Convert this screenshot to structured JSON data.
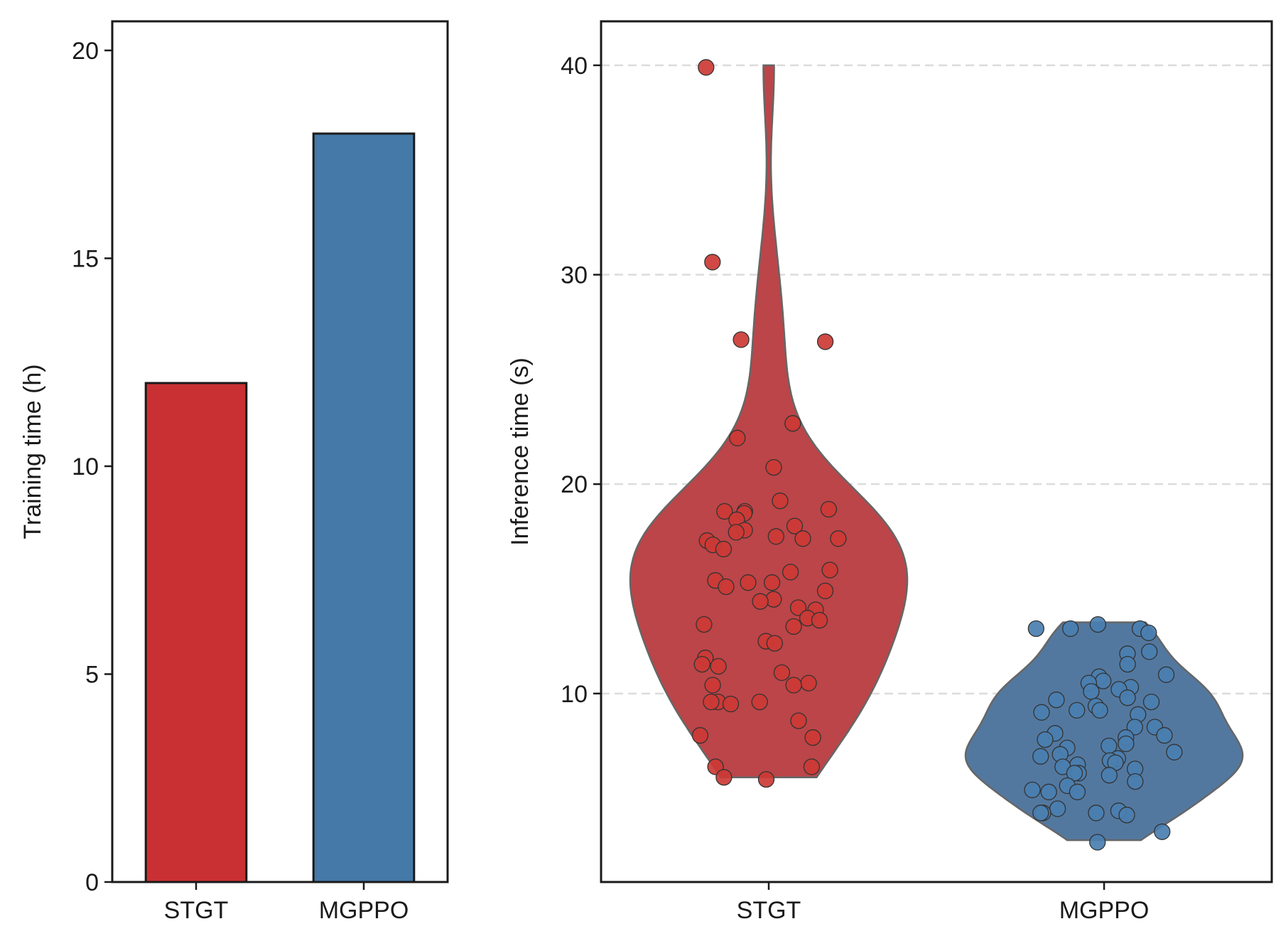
{
  "chart_data": [
    {
      "type": "bar",
      "ylabel": "Training time (h)",
      "categories": [
        "STGT",
        "MGPPO"
      ],
      "values": [
        12,
        18
      ],
      "colors": [
        "#c93033",
        "#4479a8"
      ],
      "ylim": [
        0,
        20.7
      ],
      "yticks": [
        0,
        5,
        10,
        15,
        20
      ],
      "ytick_labels": [
        "0",
        "5",
        "10",
        "15",
        "20"
      ],
      "grid": false
    },
    {
      "type": "scatter",
      "subtype": "violin-with-jittered-points",
      "ylabel": "Inference time (s)",
      "categories": [
        "STGT",
        "MGPPO"
      ],
      "ylim": [
        1,
        42.1
      ],
      "yticks": [
        10,
        20,
        30,
        40
      ],
      "ytick_labels": [
        "10",
        "20",
        "30",
        "40"
      ],
      "grid": "horizontal dashed",
      "series": [
        {
          "category": "STGT",
          "color": "#bb4548",
          "point_color": "#cc3a35",
          "violin_range": [
            6,
            40
          ],
          "values": [
            39.9,
            30.6,
            26.9,
            26.8,
            22.9,
            22.2,
            20.8,
            19.2,
            18.8,
            18.7,
            18.7,
            18.6,
            18.3,
            18.0,
            17.8,
            17.7,
            17.5,
            17.4,
            17.4,
            17.3,
            17.1,
            16.9,
            15.9,
            15.8,
            15.4,
            15.3,
            15.3,
            15.1,
            14.9,
            14.5,
            14.4,
            14.1,
            14.0,
            13.6,
            13.5,
            13.3,
            13.2,
            12.5,
            12.4,
            11.7,
            11.4,
            11.3,
            11.0,
            10.5,
            10.4,
            10.4,
            9.6,
            9.6,
            9.6,
            9.5,
            8.7,
            8.0,
            7.9,
            6.5,
            6.5,
            6.0,
            5.9
          ]
        },
        {
          "category": "MGPPO",
          "color": "#53789f",
          "point_color": "#4a7fb0",
          "violin_range": [
            3,
            13.4
          ],
          "values": [
            13.3,
            13.1,
            13.1,
            13.1,
            12.9,
            12.0,
            11.9,
            11.4,
            10.9,
            10.8,
            10.6,
            10.5,
            10.3,
            10.2,
            10.1,
            9.8,
            9.7,
            9.6,
            9.4,
            9.2,
            9.2,
            9.1,
            9.0,
            8.4,
            8.4,
            8.1,
            8.0,
            7.9,
            7.8,
            7.6,
            7.5,
            7.4,
            7.2,
            7.1,
            7.0,
            6.9,
            6.8,
            6.7,
            6.6,
            6.5,
            6.4,
            6.2,
            6.2,
            6.1,
            5.8,
            5.6,
            5.4,
            5.3,
            5.3,
            4.5,
            4.4,
            4.3,
            4.3,
            4.3,
            4.2,
            3.4,
            2.9
          ]
        }
      ]
    }
  ]
}
